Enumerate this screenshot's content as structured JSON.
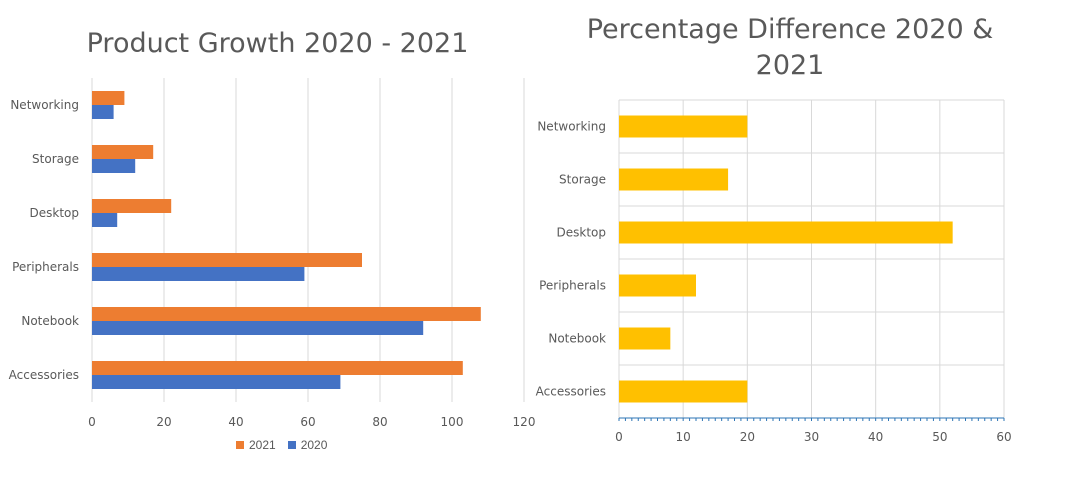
{
  "chart_data": [
    {
      "type": "bar",
      "orientation": "horizontal",
      "title": "Product Growth 2020 - 2021",
      "categories": [
        "Networking",
        "Storage",
        "Desktop",
        "Peripherals",
        "Notebook",
        "Accessories"
      ],
      "series": [
        {
          "name": "2021",
          "color": "#ED7D31",
          "values": [
            9,
            17,
            22,
            75,
            108,
            103
          ]
        },
        {
          "name": "2020",
          "color": "#4472C4",
          "values": [
            6,
            12,
            7,
            59,
            92,
            69
          ]
        }
      ],
      "xlim": [
        0,
        120
      ],
      "xticks": [
        0,
        20,
        40,
        60,
        80,
        100,
        120
      ],
      "grid": true,
      "legend": "bottom"
    },
    {
      "type": "bar",
      "orientation": "horizontal",
      "title": "Percentage Difference 2020 & 2021",
      "categories": [
        "Networking",
        "Storage",
        "Desktop",
        "Peripherals",
        "Notebook",
        "Accessories"
      ],
      "series": [
        {
          "color": "#FFC000",
          "values": [
            20,
            17,
            52,
            12,
            8,
            20
          ]
        }
      ],
      "xlim": [
        0,
        60
      ],
      "xticks": [
        0,
        10,
        20,
        30,
        40,
        50,
        60
      ],
      "grid": true,
      "legend": "none"
    }
  ]
}
